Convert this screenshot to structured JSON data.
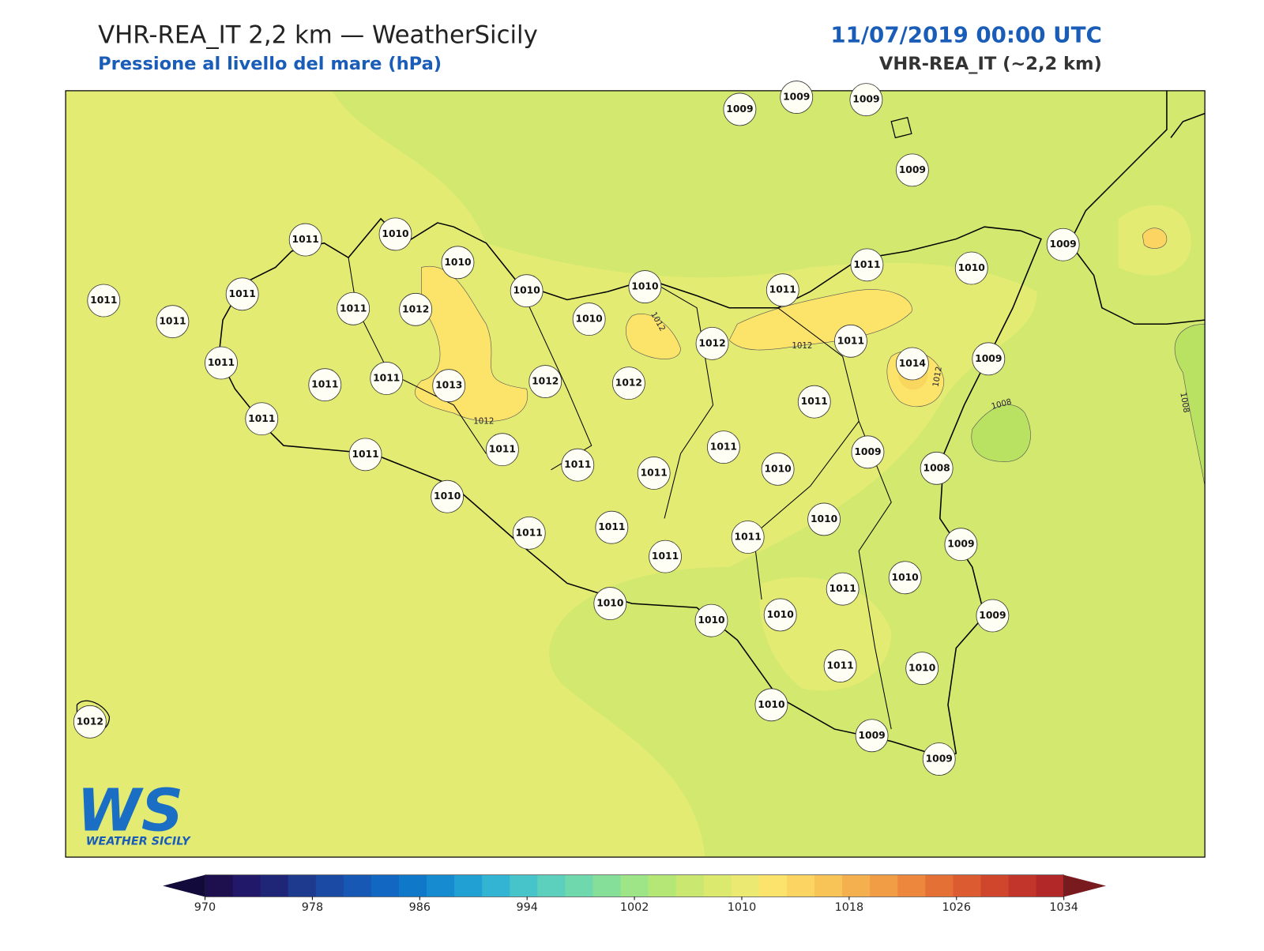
{
  "header": {
    "title": "VHR-REA_IT 2,2 km — WeatherSicily",
    "subtitle": "Pressione al livello del mare (hPa)",
    "datetime": "11/07/2019 00:00 UTC",
    "model": "VHR-REA_IT (~2,2 km)"
  },
  "map": {
    "stations": [
      1009,
      1009,
      1009,
      1009,
      1011,
      1010,
      1010,
      1011,
      1011,
      1011,
      1011,
      1012,
      1010,
      1010,
      1010,
      1011,
      1011,
      1010,
      1009,
      1012,
      1011,
      1014,
      1009,
      1011,
      1011,
      1011,
      1013,
      1012,
      1012,
      1011,
      1011,
      1011,
      1011,
      1011,
      1011,
      1011,
      1010,
      1009,
      1008,
      1010,
      1011,
      1011,
      1011,
      1011,
      1010,
      1009,
      1011,
      1010,
      1010,
      1010,
      1010,
      1009,
      1011,
      1010,
      1010,
      1009,
      1009,
      1012
    ],
    "contour_labels": [
      1012,
      1012,
      1012,
      1012,
      1008,
      1008
    ]
  },
  "colorbar": {
    "lim": [
      970,
      1034
    ],
    "ticks": [
      970,
      978,
      986,
      994,
      1002,
      1010,
      1018,
      1026,
      1034
    ],
    "colors": [
      "#1e0f4e",
      "#22186a",
      "#1f2678",
      "#1d3a8e",
      "#1a4aa3",
      "#1658b4",
      "#1167c1",
      "#0f78c9",
      "#168bcf",
      "#21a0d3",
      "#33b4d2",
      "#47c4c9",
      "#5ccfbd",
      "#6fd9ad",
      "#86df98",
      "#9de586",
      "#b4e775",
      "#cae86f",
      "#dce96f",
      "#ebe971",
      "#fbe36c",
      "#fbd462",
      "#f8c357",
      "#f4b04e",
      "#f09d45",
      "#ec873d",
      "#e57035",
      "#dc5b30",
      "#d0462d",
      "#c2352a",
      "#b22828"
    ],
    "under": "#120a3a",
    "over": "#781a1e"
  },
  "logo": {
    "mark": "WS",
    "text": "WEATHER SICILY"
  }
}
